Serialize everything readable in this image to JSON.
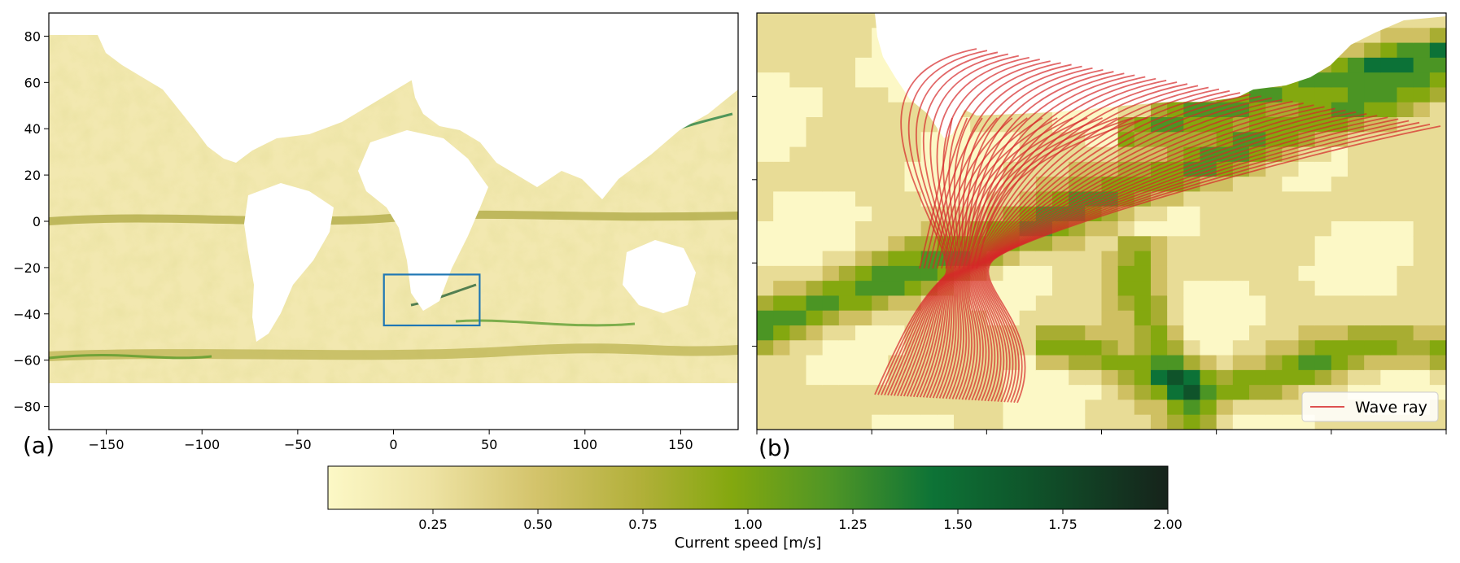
{
  "chart_data": [
    {
      "type": "heatmap",
      "panel_label": "(a)",
      "description_units": "longitude/latitude in degrees",
      "xlim": [
        -180,
        180
      ],
      "ylim": [
        -90,
        90
      ],
      "x_ticks": [
        -150,
        -100,
        -50,
        0,
        50,
        100,
        150
      ],
      "y_ticks": [
        80,
        60,
        40,
        20,
        0,
        -20,
        -40,
        -60,
        -80
      ],
      "x_tick_labels": [
        "−150",
        "−100",
        "−50",
        "0",
        "50",
        "100",
        "150"
      ],
      "y_tick_labels": [
        "80",
        "60",
        "40",
        "20",
        "0",
        "−20",
        "−40",
        "−60",
        "−80"
      ],
      "data_lat_range": [
        -70,
        80
      ],
      "highlight_box": {
        "lon": [
          -5,
          45
        ],
        "lat": [
          -45,
          -23
        ],
        "color": "#1f77b4"
      },
      "grid": false
    },
    {
      "type": "heatmap",
      "panel_label": "(b)",
      "region": {
        "lon": [
          -5,
          45
        ],
        "lat": [
          -45,
          -23
        ]
      },
      "grid": false,
      "legend": {
        "position": "bottom-right",
        "entries": [
          "Wave ray"
        ]
      },
      "series": [
        {
          "name": "Wave ray",
          "color": "#d62728",
          "count": 45
        }
      ]
    }
  ],
  "colorbar": {
    "label": "Current speed [m/s]",
    "range": [
      0,
      2.0
    ],
    "ticks": [
      0.25,
      0.5,
      0.75,
      1.0,
      1.25,
      1.5,
      1.75,
      2.0
    ],
    "tick_labels": [
      "0.25",
      "0.50",
      "0.75",
      "1.00",
      "1.25",
      "1.50",
      "1.75",
      "2.00"
    ],
    "colors": [
      "#fcf8c6",
      "#e8dc96",
      "#cfc062",
      "#a8ad32",
      "#84a80f",
      "#4b9524",
      "#0c7237",
      "#0f532a",
      "#16231b"
    ]
  }
}
